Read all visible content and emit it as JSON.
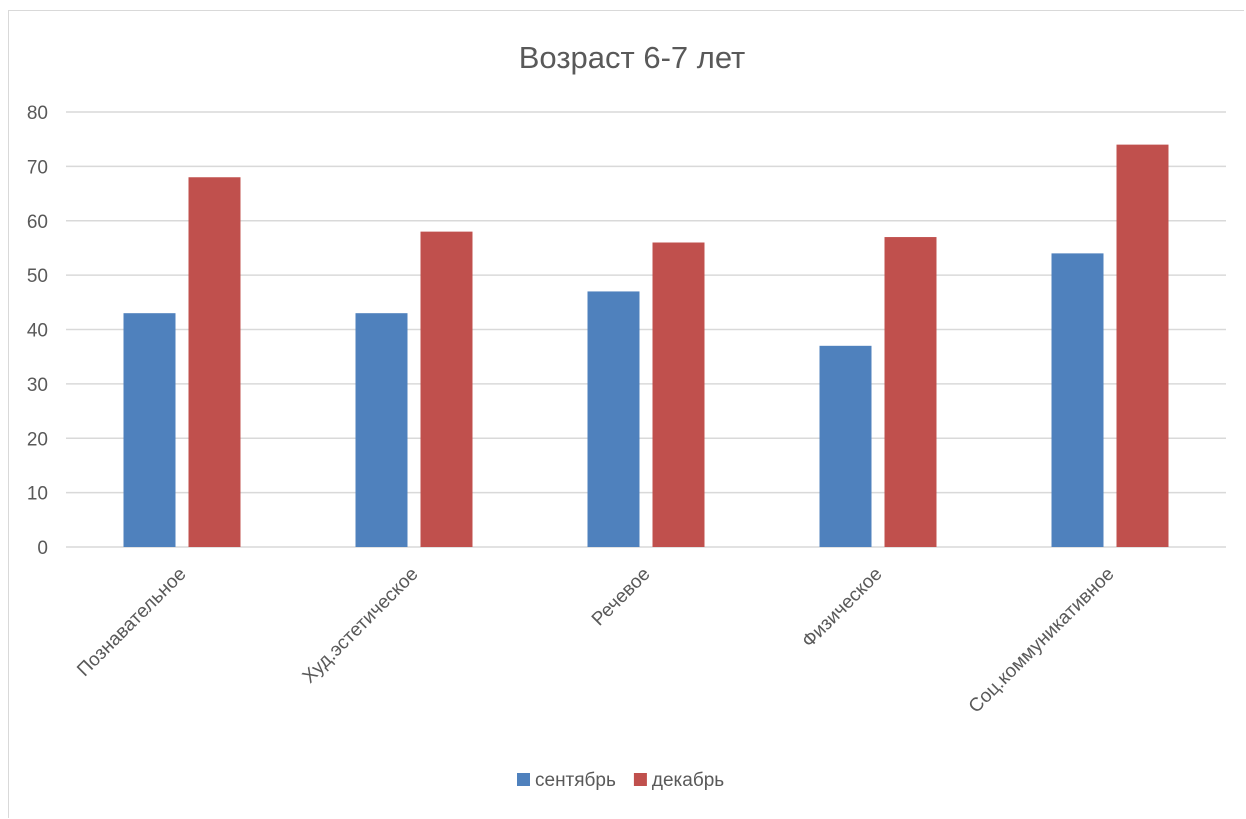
{
  "chart_data": {
    "type": "bar",
    "title": "Возраст 6-7 лет",
    "xlabel": "",
    "ylabel": "",
    "categories": [
      "Познавательное",
      "Худ.эстетическое",
      "Речевое",
      "Физическое",
      "Соц.коммуникативное"
    ],
    "series": [
      {
        "name": "сентябрь",
        "values": [
          43,
          43,
          47,
          37,
          54
        ],
        "color": "#4f81bd"
      },
      {
        "name": "декабрь",
        "values": [
          68,
          58,
          56,
          57,
          74
        ],
        "color": "#c0504d"
      }
    ],
    "ylim": [
      0,
      80
    ],
    "yticks": [
      0,
      10,
      20,
      30,
      40,
      50,
      60,
      70,
      80
    ],
    "grid": true,
    "legend_position": "bottom"
  },
  "colors": {
    "gridline": "#d9d9d9",
    "text": "#595959"
  }
}
